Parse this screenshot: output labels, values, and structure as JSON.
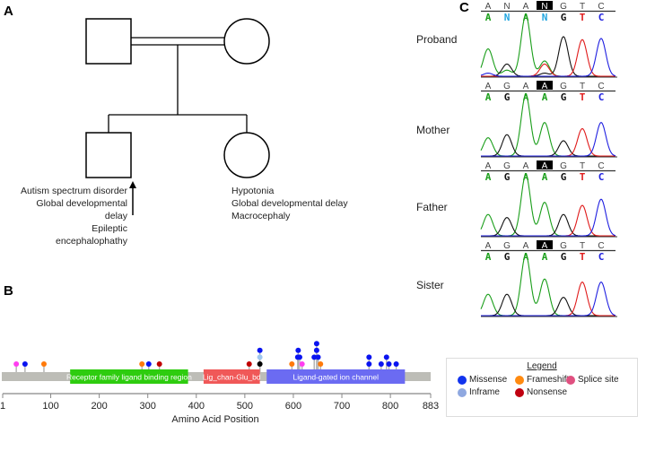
{
  "panels": {
    "a": "A",
    "b": "B",
    "c": "C"
  },
  "pedigree": {
    "proband_phenotypes": [
      "Autism spectrum disorder",
      "Global developmental delay",
      "Epileptic encephalophathy"
    ],
    "sister_phenotypes": [
      "Hypotonia",
      "Global developmental delay",
      "Macrocephaly"
    ]
  },
  "chromatograms": [
    {
      "label": "Proband",
      "top_seq": [
        "A",
        "N",
        "A",
        "N",
        "G",
        "T",
        "C"
      ],
      "called_seq": [
        "A",
        "N",
        "A",
        "N",
        "G",
        "T",
        "C"
      ],
      "highlight": 3,
      "peaks": {
        "A": [
          0.45,
          0.1,
          1.0,
          0.25,
          0,
          0,
          0
        ],
        "G": [
          0,
          0.2,
          0,
          0.05,
          0.65,
          0,
          0
        ],
        "T": [
          0,
          0,
          0,
          0.2,
          0,
          0.6,
          0
        ],
        "C": [
          0.05,
          0,
          0,
          0,
          0,
          0,
          0.62
        ]
      }
    },
    {
      "label": "Mother",
      "top_seq": [
        "A",
        "G",
        "A",
        "A",
        "G",
        "T",
        "C"
      ],
      "called_seq": [
        "A",
        "G",
        "A",
        "A",
        "G",
        "T",
        "C"
      ],
      "highlight": 3,
      "peaks": {
        "A": [
          0.3,
          0,
          1.0,
          0.55,
          0,
          0,
          0
        ],
        "G": [
          0,
          0.35,
          0,
          0,
          0.25,
          0,
          0
        ],
        "T": [
          0,
          0,
          0,
          0,
          0,
          0.45,
          0
        ],
        "C": [
          0,
          0,
          0,
          0,
          0,
          0,
          0.55
        ]
      }
    },
    {
      "label": "Father",
      "top_seq": [
        "A",
        "G",
        "A",
        "A",
        "G",
        "T",
        "C"
      ],
      "called_seq": [
        "A",
        "G",
        "A",
        "A",
        "G",
        "T",
        "C"
      ],
      "highlight": 3,
      "peaks": {
        "A": [
          0.35,
          0,
          1.0,
          0.55,
          0,
          0,
          0
        ],
        "G": [
          0,
          0.3,
          0,
          0,
          0.35,
          0,
          0
        ],
        "T": [
          0,
          0,
          0,
          0,
          0,
          0.5,
          0
        ],
        "C": [
          0,
          0,
          0,
          0,
          0,
          0,
          0.6
        ]
      }
    },
    {
      "label": "Sister",
      "top_seq": [
        "A",
        "G",
        "A",
        "A",
        "G",
        "T",
        "C"
      ],
      "called_seq": [
        "A",
        "G",
        "A",
        "A",
        "G",
        "T",
        "C"
      ],
      "highlight": 3,
      "peaks": {
        "A": [
          0.35,
          0,
          1.0,
          0.6,
          0,
          0,
          0
        ],
        "G": [
          0,
          0.35,
          0,
          0,
          0.3,
          0,
          0
        ],
        "T": [
          0,
          0,
          0,
          0,
          0,
          0.55,
          0
        ],
        "C": [
          0,
          0,
          0,
          0,
          0,
          0,
          0.55
        ]
      }
    }
  ],
  "base_colors": {
    "A": "#1a9e1a",
    "N": "#22a6e0",
    "G": "#111111",
    "T": "#e01b1b",
    "C": "#2020e0"
  },
  "lollipop": {
    "length": 883,
    "xlabel": "Amino Acid Position",
    "ticks": [
      1,
      100,
      200,
      300,
      400,
      500,
      600,
      700,
      800,
      883
    ],
    "domains": [
      {
        "name": "Receptor family ligand binding region",
        "start": 140,
        "end": 383,
        "color": "#2ecc0f"
      },
      {
        "name": "Lig_chan-Glu_bd",
        "start": 415,
        "end": 531,
        "color": "#f05858"
      },
      {
        "name": "Ligand-gated ion channel",
        "start": 545,
        "end": 830,
        "color": "#6b6bf2"
      }
    ],
    "mutations": [
      {
        "pos": 29,
        "type": "splice",
        "stack": 1
      },
      {
        "pos": 47,
        "type": "missense",
        "stack": 1
      },
      {
        "pos": 86,
        "type": "frameshift",
        "stack": 1
      },
      {
        "pos": 288,
        "type": "frameshift",
        "stack": 1
      },
      {
        "pos": 302,
        "type": "missense",
        "stack": 1
      },
      {
        "pos": 324,
        "type": "nonsense",
        "stack": 1
      },
      {
        "pos": 509,
        "type": "nonsense",
        "stack": 1
      },
      {
        "pos": 531,
        "type": "other",
        "stack": 1
      },
      {
        "pos": 531,
        "type": "inframe",
        "stack": 2
      },
      {
        "pos": 531,
        "type": "missense",
        "stack": 3
      },
      {
        "pos": 597,
        "type": "frameshift",
        "stack": 1
      },
      {
        "pos": 609,
        "type": "missense",
        "stack": 2
      },
      {
        "pos": 610,
        "type": "missense",
        "stack": 3
      },
      {
        "pos": 613,
        "type": "missense",
        "stack": 2
      },
      {
        "pos": 618,
        "type": "splice",
        "stack": 1
      },
      {
        "pos": 643,
        "type": "missense",
        "stack": 2
      },
      {
        "pos": 648,
        "type": "missense",
        "stack": 3
      },
      {
        "pos": 648,
        "type": "missense",
        "stack": 4
      },
      {
        "pos": 651,
        "type": "missense",
        "stack": 2
      },
      {
        "pos": 656,
        "type": "frameshift",
        "stack": 1
      },
      {
        "pos": 756,
        "type": "missense",
        "stack": 1
      },
      {
        "pos": 756,
        "type": "missense",
        "stack": 2
      },
      {
        "pos": 781,
        "type": "missense",
        "stack": 1
      },
      {
        "pos": 792,
        "type": "missense",
        "stack": 2
      },
      {
        "pos": 797,
        "type": "missense",
        "stack": 1
      },
      {
        "pos": 812,
        "type": "missense",
        "stack": 1
      }
    ],
    "type_colors": {
      "missense": "#0a14f0",
      "frameshift": "#ff7a0a",
      "splice": "#ff3df0",
      "inframe": "#9ec7f0",
      "nonsense": "#c00000",
      "other": "#000000"
    }
  },
  "legend": {
    "title": "Legend",
    "items": [
      {
        "label": "Missense",
        "color": "#1133ee"
      },
      {
        "label": "Frameshift",
        "color": "#ff8a10"
      },
      {
        "label": "Splice site",
        "color": "#e05080"
      },
      {
        "label": "Inframe",
        "color": "#8fa8e0"
      },
      {
        "label": "Nonsense",
        "color": "#c00010"
      }
    ]
  }
}
